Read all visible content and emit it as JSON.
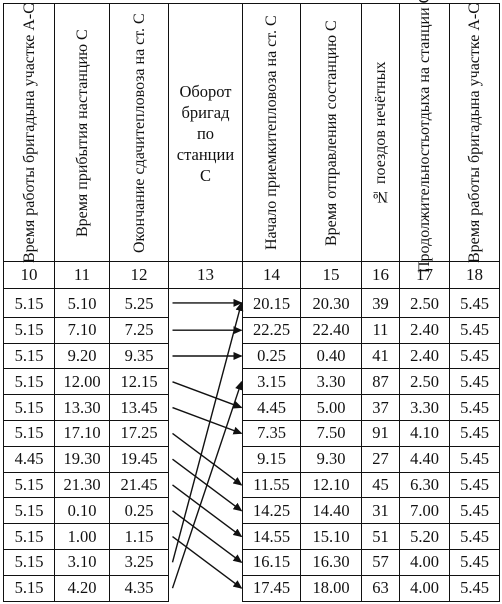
{
  "headers": [
    {
      "num": "10",
      "lines": [
        "Время работы бригады",
        "на участке А-С"
      ]
    },
    {
      "num": "11",
      "lines": [
        "Время прибытия на",
        "станцию С"
      ]
    },
    {
      "num": "12",
      "lines": [
        "Окончание сдачи",
        "тепловоза на ст. С"
      ]
    },
    {
      "num": "13",
      "lines": [
        "Оборот",
        "бригад",
        "по",
        "станции",
        "С"
      ]
    },
    {
      "num": "14",
      "lines": [
        "Начало приемки",
        "тепловоза на ст. С"
      ]
    },
    {
      "num": "15",
      "lines": [
        "Время отправления со",
        "станцию С"
      ]
    },
    {
      "num": "16",
      "lines": [
        "№ поездов нечётных"
      ]
    },
    {
      "num": "17",
      "lines": [
        "Продолжительность",
        "отдыха на станции С"
      ]
    },
    {
      "num": "18",
      "lines": [
        "Время работы бригады",
        "на участке А-С"
      ]
    }
  ],
  "rows": [
    {
      "c10": "5.15",
      "c11": "5.10",
      "c12": "5.25",
      "c14": "20.15",
      "c15": "20.30",
      "c16": "39",
      "c17": "2.50",
      "c18": "5.45"
    },
    {
      "c10": "5.15",
      "c11": "7.10",
      "c12": "7.25",
      "c14": "22.25",
      "c15": "22.40",
      "c16": "11",
      "c17": "2.40",
      "c18": "5.45"
    },
    {
      "c10": "5.15",
      "c11": "9.20",
      "c12": "9.35",
      "c14": "0.25",
      "c15": "0.40",
      "c16": "41",
      "c17": "2.40",
      "c18": "5.45"
    },
    {
      "c10": "5.15",
      "c11": "12.00",
      "c12": "12.15",
      "c14": "3.15",
      "c15": "3.30",
      "c16": "87",
      "c17": "2.50",
      "c18": "5.45"
    },
    {
      "c10": "5.15",
      "c11": "13.30",
      "c12": "13.45",
      "c14": "4.45",
      "c15": "5.00",
      "c16": "37",
      "c17": "3.30",
      "c18": "5.45"
    },
    {
      "c10": "5.15",
      "c11": "17.10",
      "c12": "17.25",
      "c14": "7.35",
      "c15": "7.50",
      "c16": "91",
      "c17": "4.10",
      "c18": "5.45"
    },
    {
      "c10": "4.45",
      "c11": "19.30",
      "c12": "19.45",
      "c14": "9.15",
      "c15": "9.30",
      "c16": "27",
      "c17": "4.40",
      "c18": "5.45"
    },
    {
      "c10": "5.15",
      "c11": "21.30",
      "c12": "21.45",
      "c14": "11.55",
      "c15": "12.10",
      "c16": "45",
      "c17": "6.30",
      "c18": "5.45"
    },
    {
      "c10": "5.15",
      "c11": "0.10",
      "c12": "0.25",
      "c14": "14.25",
      "c15": "14.40",
      "c16": "31",
      "c17": "7.00",
      "c18": "5.45"
    },
    {
      "c10": "5.15",
      "c11": "1.00",
      "c12": "1.15",
      "c14": "14.55",
      "c15": "15.10",
      "c16": "51",
      "c17": "5.20",
      "c18": "5.45"
    },
    {
      "c10": "5.15",
      "c11": "3.10",
      "c12": "3.25",
      "c14": "16.15",
      "c15": "16.30",
      "c16": "57",
      "c17": "4.00",
      "c18": "5.45"
    },
    {
      "c10": "5.15",
      "c11": "4.20",
      "c12": "4.35",
      "c14": "17.45",
      "c15": "18.00",
      "c16": "63",
      "c17": "4.00",
      "c18": "5.45"
    }
  ],
  "turnover_links": [
    {
      "from_row": 1,
      "to_row": 1
    },
    {
      "from_row": 2,
      "to_row": 2
    },
    {
      "from_row": 3,
      "to_row": 3
    },
    {
      "from_row": 4,
      "to_row": 5
    },
    {
      "from_row": 5,
      "to_row": 6
    },
    {
      "from_row": 6,
      "to_row": 8
    },
    {
      "from_row": 7,
      "to_row": 9
    },
    {
      "from_row": 8,
      "to_row": 10
    },
    {
      "from_row": 9,
      "to_row": 11
    },
    {
      "from_row": 10,
      "to_row": 12
    },
    {
      "from_row": 11,
      "to_row": 1
    },
    {
      "from_row": 12,
      "to_row": 4
    }
  ]
}
